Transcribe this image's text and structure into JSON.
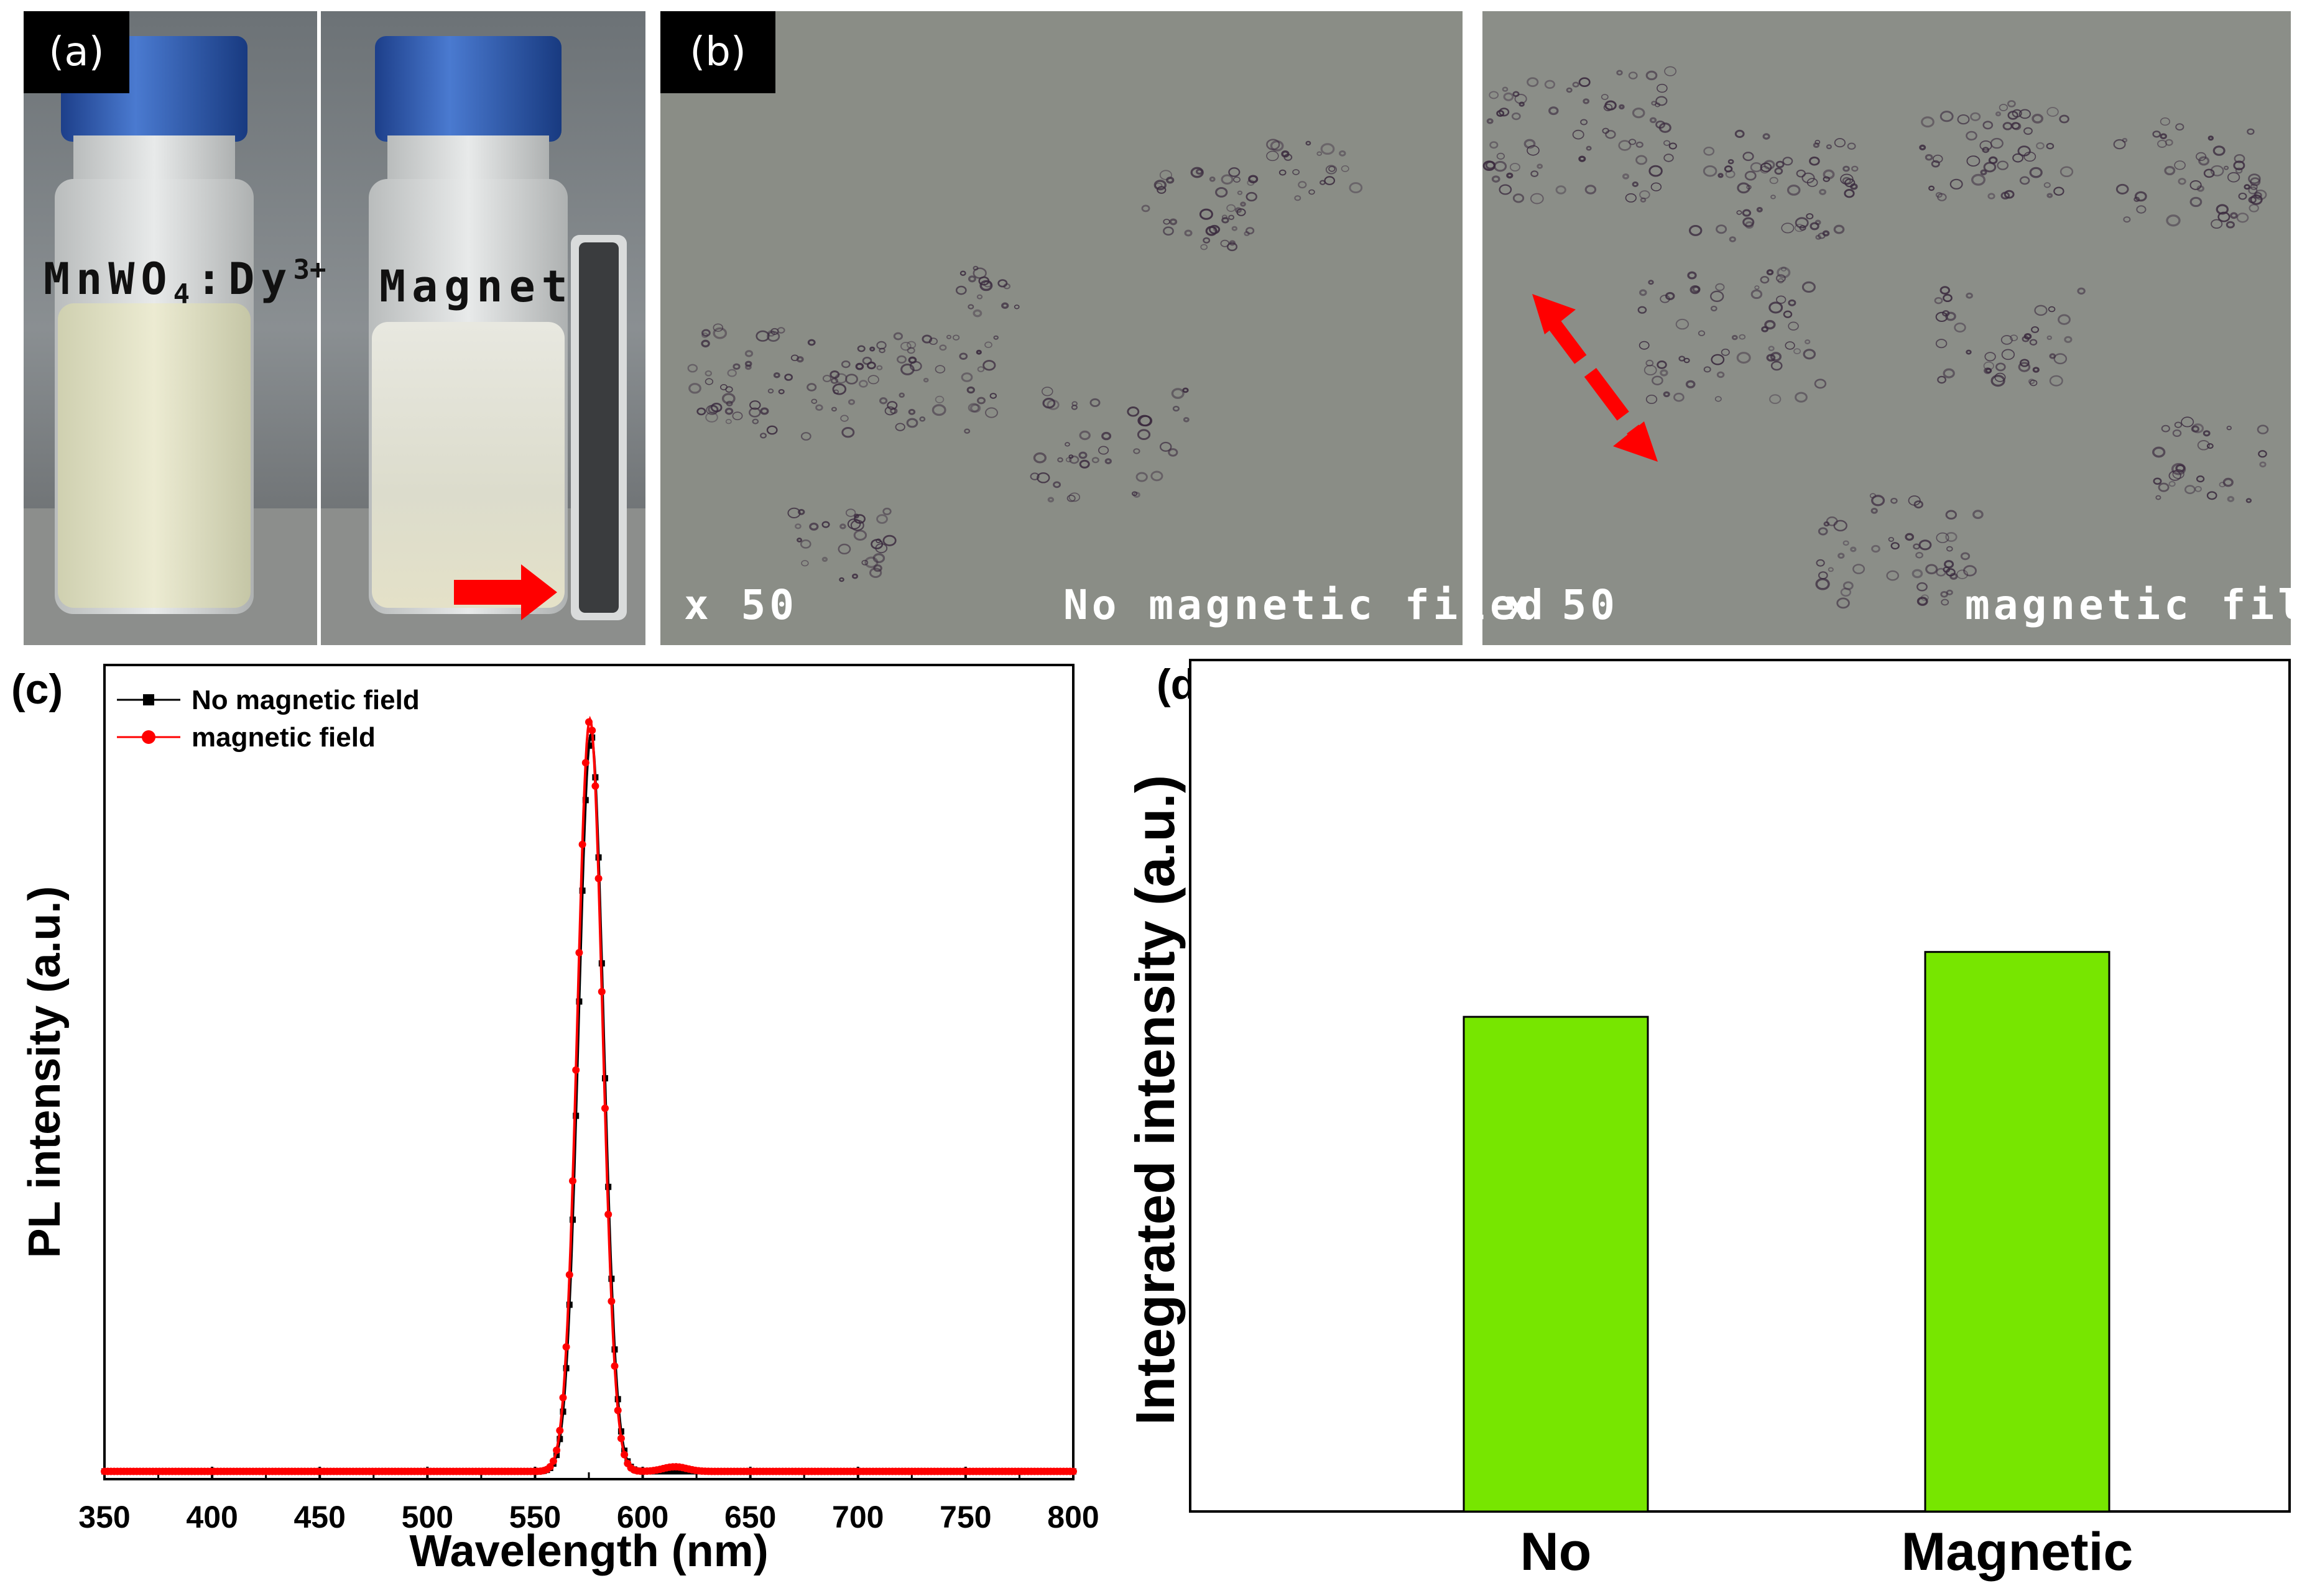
{
  "panel_a": {
    "tag": "(a)",
    "left_label_main": "MnWO",
    "left_label_sub": "4",
    "left_label_sep": ":",
    "left_label_ion": "Dy",
    "left_label_sup": "3+",
    "right_label": "Magnet"
  },
  "panel_b": {
    "tag": "(b)",
    "left_mag": "x 50",
    "left_caption": "No magnetic filed",
    "right_mag": "x 50",
    "right_caption": "magnetic filed"
  },
  "panel_c_letter": "(c)",
  "panel_d_letter": "(d)",
  "colors": {
    "series_no": "#000000",
    "series_magnetic": "#ff0000",
    "bar_fill": "#77e600",
    "arrow": "#ff0000",
    "cap_blue": "#2f5fb8"
  },
  "chart_data": [
    {
      "type": "line",
      "xlabel": "Wavelength (nm)",
      "ylabel": "PL intensity (a.u.)",
      "xlim": [
        350,
        800
      ],
      "ylim": [
        0,
        1.05
      ],
      "xticks": [
        350,
        400,
        450,
        500,
        550,
        600,
        650,
        700,
        750,
        800
      ],
      "legend_placement": "top-left",
      "grid": false,
      "series": [
        {
          "name": "No magnetic field",
          "color": "#000000",
          "marker": "square",
          "peak_x": 576,
          "peak_y": 0.95,
          "width_sigma": 5.8,
          "baseline": 0.01
        },
        {
          "name": "magnetic field",
          "color": "#ff0000",
          "marker": "circle",
          "peak_x": 575.5,
          "peak_y": 0.97,
          "width_sigma": 5.8,
          "baseline": 0.01
        }
      ]
    },
    {
      "type": "bar",
      "ylabel": "Integrated intensity (a.u.)",
      "categories": [
        "No",
        "Magnetic"
      ],
      "values": [
        0.61,
        0.69
      ],
      "ylim": [
        0,
        1.05
      ],
      "grid": false
    }
  ]
}
